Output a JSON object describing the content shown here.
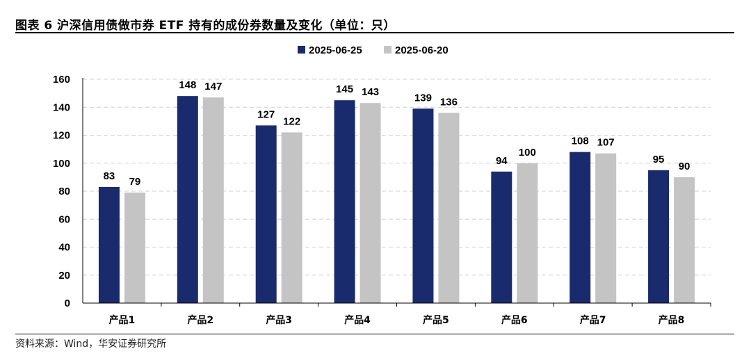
{
  "figure": {
    "title": "图表 6 沪深信用债做市券 ETF 持有的成份券数量及变化（单位：只）",
    "source": "资料来源：Wind，华安证券研究所"
  },
  "chart_data": {
    "type": "bar",
    "categories": [
      "产品1",
      "产品2",
      "产品3",
      "产品4",
      "产品5",
      "产品6",
      "产品7",
      "产品8"
    ],
    "series": [
      {
        "name": "2025-06-25",
        "values": [
          83,
          148,
          127,
          145,
          139,
          94,
          108,
          95
        ],
        "color": "#1a2b6d"
      },
      {
        "name": "2025-06-20",
        "values": [
          79,
          147,
          122,
          143,
          136,
          100,
          107,
          90
        ],
        "color": "#c4c4c4"
      }
    ],
    "title": "",
    "xlabel": "",
    "ylabel": "",
    "ylim": [
      0,
      160
    ],
    "yticks": [
      0,
      20,
      40,
      60,
      80,
      100,
      120,
      140,
      160
    ],
    "grid": true,
    "legend": "top-center",
    "data_labels": true
  }
}
